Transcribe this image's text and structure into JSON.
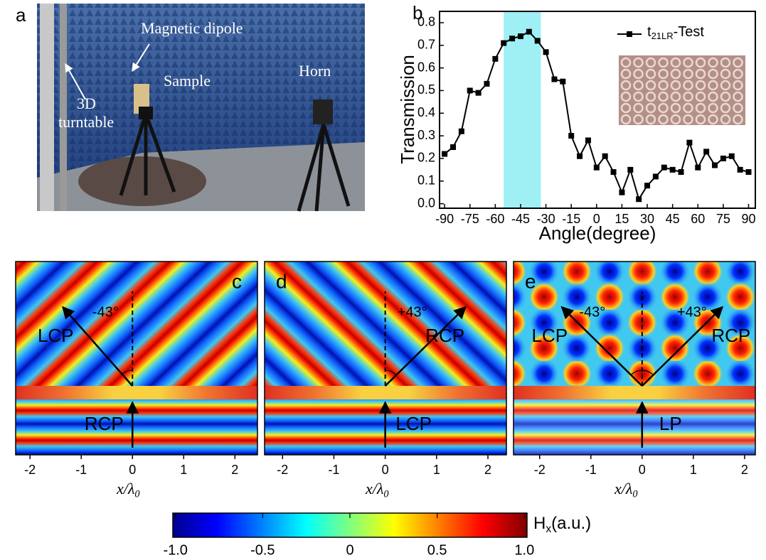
{
  "panel_a": {
    "letter": "a",
    "labels": {
      "magnetic_dipole": "Magnetic dipole",
      "sample": "Sample",
      "horn": "Horn",
      "turntable": [
        "3D",
        "turntable"
      ]
    }
  },
  "chart_data": {
    "type": "line",
    "letter": "b",
    "x": [
      -90,
      -85,
      -80,
      -75,
      -70,
      -65,
      -60,
      -55,
      -50,
      -45,
      -40,
      -35,
      -30,
      -25,
      -20,
      -15,
      -10,
      -5,
      0,
      5,
      10,
      15,
      20,
      25,
      30,
      35,
      40,
      45,
      50,
      55,
      60,
      65,
      70,
      75,
      80,
      85,
      90
    ],
    "series": [
      {
        "name": {
          "base": "t",
          "sub": "21LR",
          "suffix": "-Test"
        },
        "color": "#000000",
        "values": [
          0.22,
          0.25,
          0.32,
          0.5,
          0.49,
          0.53,
          0.64,
          0.71,
          0.73,
          0.74,
          0.76,
          0.72,
          0.67,
          0.55,
          0.54,
          0.3,
          0.21,
          0.28,
          0.16,
          0.21,
          0.14,
          0.05,
          0.15,
          0.02,
          0.08,
          0.12,
          0.16,
          0.15,
          0.14,
          0.27,
          0.16,
          0.23,
          0.17,
          0.2,
          0.21,
          0.15,
          0.14
        ]
      }
    ],
    "highlight": [
      -55,
      -33
    ],
    "highlight_color": "#9ff0f5",
    "xlabel": "Angle(degree)",
    "ylabel": "Transmission",
    "xlim": [
      -93,
      94
    ],
    "ylim": [
      -0.02,
      0.85
    ],
    "xticks": [
      -90,
      -75,
      -60,
      -45,
      -30,
      -15,
      0,
      15,
      30,
      45,
      60,
      75,
      90
    ],
    "yticks": [
      {
        "value": 0,
        "label": "0.0"
      },
      0.1,
      0.2,
      0.3,
      0.4,
      0.5,
      0.6,
      0.7,
      0.8
    ]
  },
  "field_xlabel": {
    "base": "x/λ",
    "sub": "0"
  },
  "field_panels": [
    {
      "letter": "c",
      "xlim": [
        -2.28,
        2.44
      ],
      "xticks": [
        -2,
        -1,
        0,
        1,
        2
      ],
      "angles": [
        "-43°"
      ],
      "upper": [
        "LCP"
      ],
      "lower": "RCP"
    },
    {
      "letter": "d",
      "xlim": [
        -2.35,
        2.36
      ],
      "xticks": [
        -2,
        -1,
        0,
        1,
        2
      ],
      "angles": [
        "+43°"
      ],
      "upper": [
        "RCP"
      ],
      "lower": "LCP"
    },
    {
      "letter": "e",
      "xlim": [
        -2.51,
        2.21
      ],
      "xticks": [
        -2,
        -1,
        0,
        1,
        2
      ],
      "angles": [
        "-43°",
        "+43°"
      ],
      "upper": [
        "LCP",
        "RCP"
      ],
      "lower": "LP"
    }
  ],
  "colorbar": {
    "label": {
      "base": "H",
      "sub": "x",
      "suffix": "(a.u.)"
    },
    "xlim": [
      -1.015,
      1.015
    ],
    "ticks": [
      {
        "value": -1,
        "label": "-1.0"
      },
      -0.5,
      0,
      0.5,
      {
        "value": 1,
        "label": "1.0"
      }
    ]
  }
}
